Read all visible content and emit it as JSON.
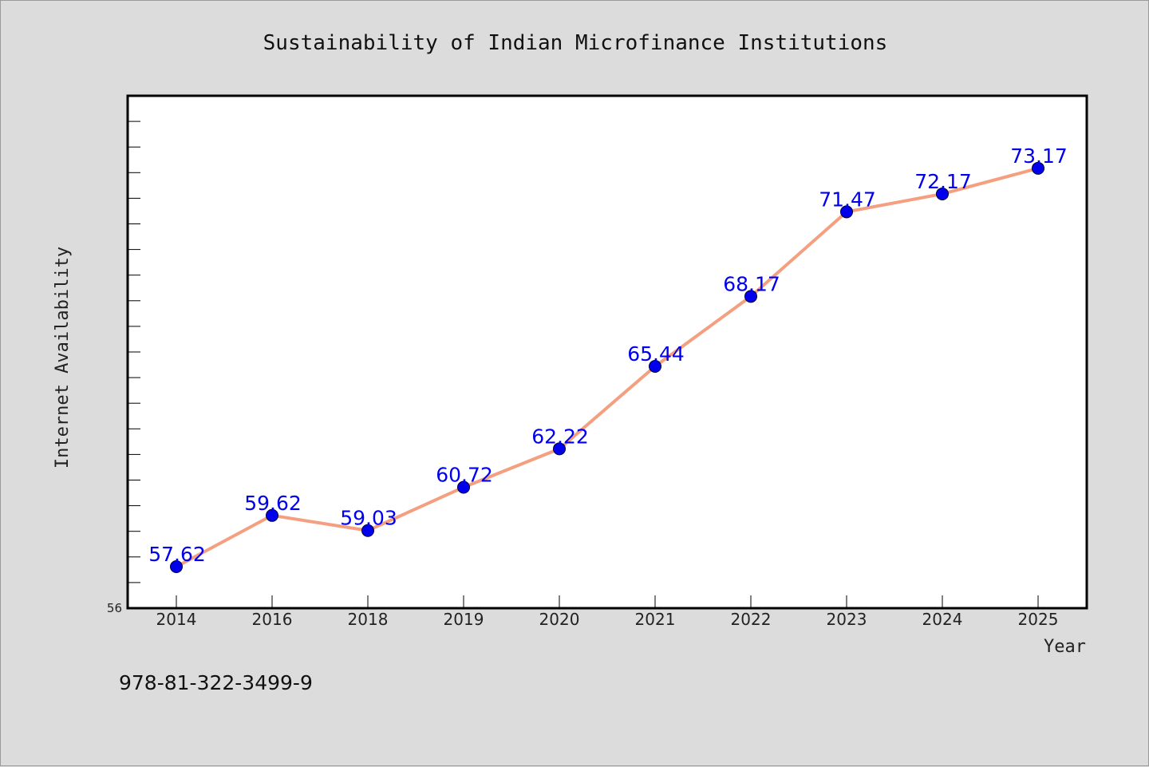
{
  "chart_data": {
    "type": "line",
    "title": "Sustainability of Indian Microfinance Institutions",
    "xlabel": "Year",
    "ylabel": "Internet Availability",
    "categories": [
      "2014",
      "2016",
      "2018",
      "2019",
      "2020",
      "2021",
      "2022",
      "2023",
      "2024",
      "2025"
    ],
    "values": [
      57.62,
      59.62,
      59.03,
      60.72,
      62.22,
      65.44,
      68.17,
      71.47,
      72.17,
      73.17
    ],
    "data_labels": [
      "57.62",
      "59.62",
      "59.03",
      "60.72",
      "62.22",
      "65.44",
      "68.17",
      "71.47",
      "72.17",
      "73.17"
    ],
    "ylim": [
      56,
      76
    ],
    "yticks_labeled": [
      "56"
    ],
    "grid": false,
    "legend": "none",
    "line_color": "#f4a080",
    "marker_color": "#0000ee",
    "label_color": "#0000ee",
    "background_color": "#dcdcdc",
    "plot_background": "#ffffff"
  },
  "footer": {
    "isbn": "978-81-322-3499-9"
  }
}
